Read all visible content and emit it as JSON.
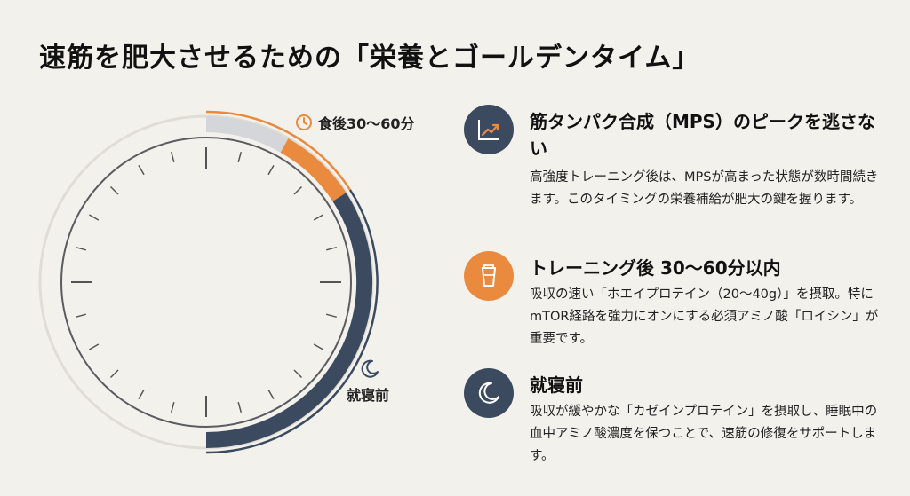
{
  "title": "速筋を肥大させるための「栄養とゴールデンタイム」",
  "clock": {
    "annotation_top": "食後30〜60分",
    "annotation_bed": "就寝前",
    "colors": {
      "orange": "#ea8a3e",
      "navy": "#3c4a60",
      "gray": "#d5d6da",
      "light": "#e0ddd6"
    }
  },
  "items": [
    {
      "icon": "chart-up-icon",
      "title": "筋タンパク合成（MPS）のピークを逃さない",
      "desc": "高強度トレーニング後は、MPSが高まった状態が数時間続きます。このタイミングの栄養補給が肥大の鍵を握ります。"
    },
    {
      "icon": "protein-shaker-icon",
      "title": "トレーニング後 30〜60分以内",
      "desc": "吸収の速い「ホエイプロテイン（20〜40g）」を摂取。特にmTOR経路を強力にオンにする必須アミノ酸「ロイシン」が重要です。"
    },
    {
      "icon": "moon-icon",
      "title": "就寝前",
      "desc": "吸収が緩やかな「カゼインプロテイン」を摂取し、睡眠中の血中アミノ酸濃度を保つことで、速筋の修復をサポートします。"
    }
  ]
}
